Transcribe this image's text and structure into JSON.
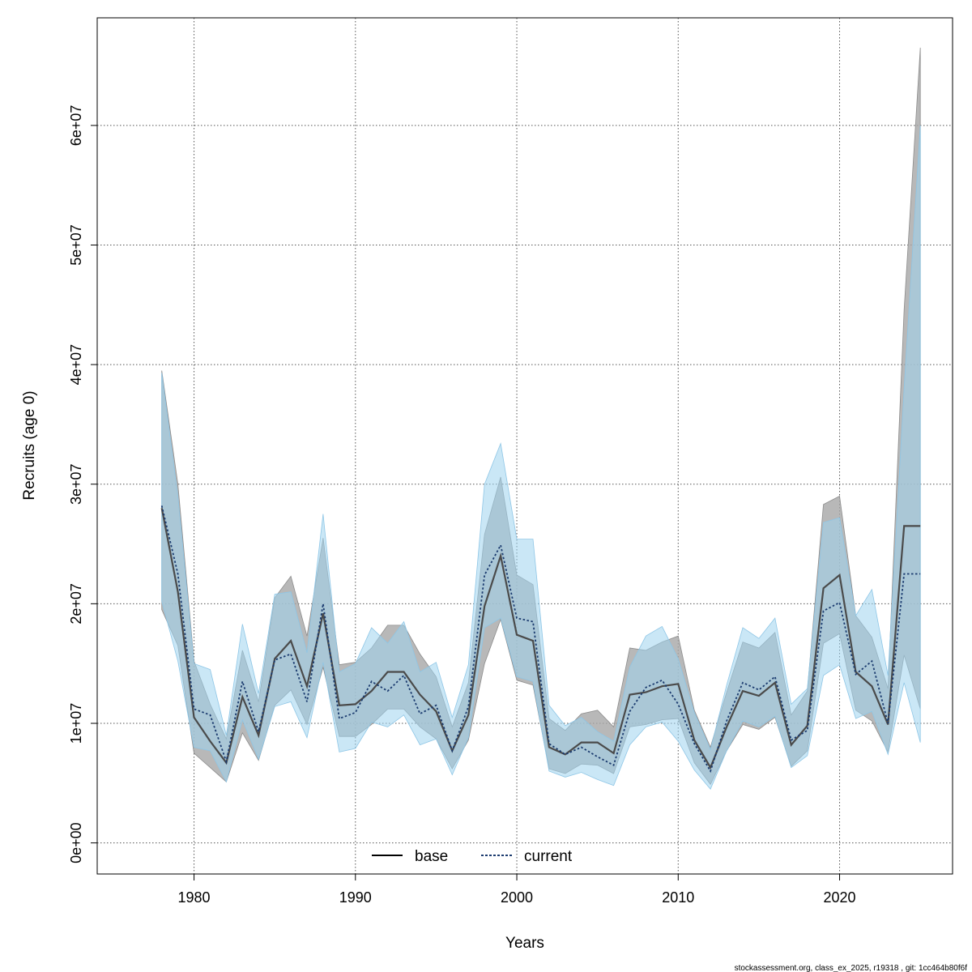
{
  "chart_data": {
    "type": "line",
    "xlabel": "Years",
    "ylabel": "Recruits (age 0)",
    "xlim": [
      1974,
      2027
    ],
    "ylim": [
      -2600000,
      69000000
    ],
    "x_ticks": [
      1980,
      1990,
      2000,
      2010,
      2020
    ],
    "y_ticks": [
      0,
      10000000,
      20000000,
      30000000,
      40000000,
      50000000,
      60000000
    ],
    "y_tick_labels": [
      "0e+00",
      "1e+07",
      "2e+07",
      "3e+07",
      "4e+07",
      "5e+07",
      "6e+07"
    ],
    "grid": true,
    "legend_placement": "bottom",
    "x": [
      1978,
      1979,
      1980,
      1981,
      1982,
      1983,
      1984,
      1985,
      1986,
      1987,
      1988,
      1989,
      1990,
      1991,
      1992,
      1993,
      1994,
      1995,
      1996,
      1997,
      1998,
      1999,
      2000,
      2001,
      2002,
      2003,
      2004,
      2005,
      2006,
      2007,
      2008,
      2009,
      2010,
      2011,
      2012,
      2013,
      2014,
      2015,
      2016,
      2017,
      2018,
      2019,
      2020,
      2021,
      2022,
      2023,
      2024,
      2025
    ],
    "series": [
      {
        "name": "base",
        "color": "#000000",
        "line_style": "solid",
        "band_color": "#a6a6a6",
        "values": [
          28000000,
          21000000,
          10500000,
          8500000,
          6700000,
          12200000,
          9000000,
          15400000,
          16900000,
          13100000,
          19200000,
          11500000,
          11600000,
          12700000,
          14300000,
          14300000,
          12400000,
          11000000,
          7700000,
          10700000,
          19800000,
          24000000,
          17400000,
          16900000,
          8000000,
          7400000,
          8400000,
          8400000,
          7500000,
          12400000,
          12600000,
          13100000,
          13300000,
          8600000,
          6300000,
          9700000,
          12700000,
          12300000,
          13400000,
          8200000,
          9800000,
          21300000,
          22400000,
          14300000,
          13100000,
          9900000,
          26500000,
          26500000
        ],
        "lower": [
          19500000,
          16500000,
          7500000,
          6300000,
          5100000,
          9200000,
          6900000,
          11500000,
          12800000,
          9900000,
          14700000,
          8900000,
          8900000,
          9900000,
          11200000,
          11200000,
          9700000,
          8700000,
          6200000,
          8600000,
          15000000,
          18700000,
          13600000,
          13200000,
          6200000,
          5800000,
          6600000,
          6500000,
          5800000,
          9700000,
          9900000,
          10300000,
          10400000,
          6700000,
          4900000,
          7700000,
          9900000,
          9500000,
          10500000,
          6400000,
          7700000,
          16700000,
          17500000,
          11100000,
          10200000,
          7600000,
          15700000,
          11200000
        ],
        "upper": [
          39500000,
          30000000,
          15200000,
          11600000,
          8700000,
          16100000,
          11800000,
          20500000,
          22300000,
          17300000,
          25500000,
          14900000,
          15100000,
          16300000,
          18200000,
          18200000,
          15800000,
          13900000,
          9700000,
          13400000,
          25800000,
          30600000,
          22400000,
          21600000,
          10400000,
          9400000,
          10800000,
          11100000,
          9700000,
          16300000,
          16100000,
          16800000,
          17300000,
          11100000,
          8000000,
          12600000,
          16800000,
          16300000,
          17600000,
          10700000,
          12700000,
          28300000,
          29000000,
          19000000,
          17200000,
          12900000,
          44600000,
          66500000
        ]
      },
      {
        "name": "current",
        "color": "#1b3b6f",
        "line_style": "dotted",
        "band_color": "#9fd3ef",
        "values": [
          28200000,
          22500000,
          11200000,
          10700000,
          6800000,
          13500000,
          9300000,
          15300000,
          15800000,
          11800000,
          20000000,
          10400000,
          10900000,
          13500000,
          12700000,
          14000000,
          10800000,
          11500000,
          7700000,
          11400000,
          22400000,
          24900000,
          18800000,
          18500000,
          8300000,
          7400000,
          8000000,
          7200000,
          6500000,
          11000000,
          13000000,
          13600000,
          11600000,
          8300000,
          6000000,
          10200000,
          13400000,
          12800000,
          13900000,
          8600000,
          9400000,
          19400000,
          20100000,
          14100000,
          15200000,
          10000000,
          22500000,
          22500000
        ],
        "lower": [
          20200000,
          15200000,
          8000000,
          7700000,
          5100000,
          10300000,
          7000000,
          11400000,
          11800000,
          8800000,
          15100000,
          7600000,
          7900000,
          10100000,
          9700000,
          10700000,
          8200000,
          8700000,
          5700000,
          8800000,
          18000000,
          18800000,
          13900000,
          13500000,
          6000000,
          5500000,
          5900000,
          5300000,
          4800000,
          8200000,
          9700000,
          10100000,
          8500000,
          6100000,
          4500000,
          7700000,
          10200000,
          9700000,
          10600000,
          6300000,
          7300000,
          14000000,
          14900000,
          10400000,
          11000000,
          7400000,
          13400000,
          8400000
        ],
        "upper": [
          39300000,
          29000000,
          15000000,
          14500000,
          9000000,
          18300000,
          12500000,
          20800000,
          21000000,
          15900000,
          27500000,
          14300000,
          15000000,
          18000000,
          16700000,
          18500000,
          14300000,
          15100000,
          10500000,
          14900000,
          30000000,
          33400000,
          25400000,
          25400000,
          11500000,
          9800000,
          10500000,
          9300000,
          8500000,
          14700000,
          17300000,
          18100000,
          15400000,
          10900000,
          7800000,
          13200000,
          18000000,
          17100000,
          18800000,
          11600000,
          12900000,
          26800000,
          27200000,
          19000000,
          21200000,
          14000000,
          38000000,
          60000000
        ]
      }
    ]
  },
  "footer_text": "stockassessment.org, class_ex_2025, r19318 , git: 1cc464b80f6f"
}
